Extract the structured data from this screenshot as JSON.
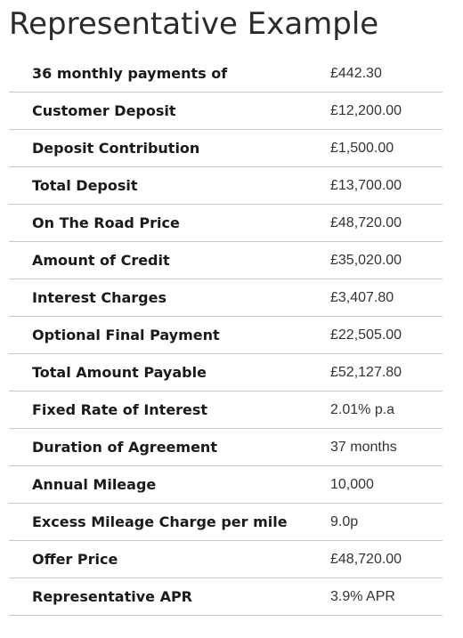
{
  "title": "Representative Example",
  "rows": [
    {
      "label": "36 monthly payments of",
      "value": "£442.30"
    },
    {
      "label": "Customer Deposit",
      "value": "£12,200.00"
    },
    {
      "label": "Deposit Contribution",
      "value": "£1,500.00"
    },
    {
      "label": "Total Deposit",
      "value": "£13,700.00"
    },
    {
      "label": "On The Road Price",
      "value": "£48,720.00"
    },
    {
      "label": "Amount of Credit",
      "value": "£35,020.00"
    },
    {
      "label": "Interest Charges",
      "value": "£3,407.80"
    },
    {
      "label": "Optional Final Payment",
      "value": "£22,505.00"
    },
    {
      "label": "Total Amount Payable",
      "value": "£52,127.80"
    },
    {
      "label": "Fixed Rate of Interest",
      "value": "2.01% p.a"
    },
    {
      "label": "Duration of Agreement",
      "value": "37 months"
    },
    {
      "label": "Annual Mileage",
      "value": "10,000"
    },
    {
      "label": "Excess Mileage Charge per mile",
      "value": "9.0p"
    },
    {
      "label": "Offer Price",
      "value": "£48,720.00"
    },
    {
      "label": "Representative APR",
      "value": "3.9% APR"
    }
  ]
}
